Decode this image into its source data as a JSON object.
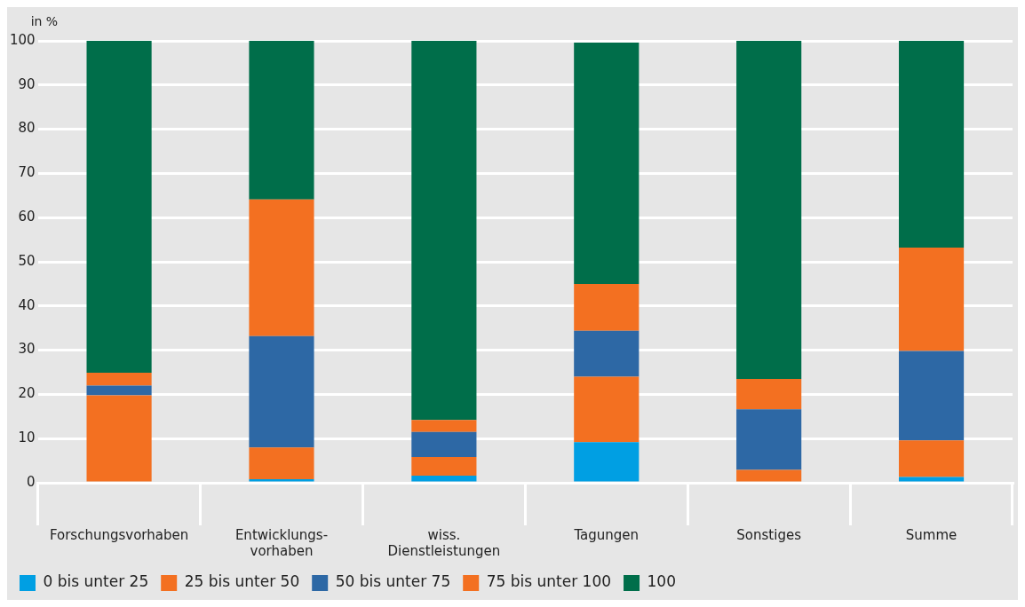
{
  "chart_data": {
    "type": "bar",
    "stacked": true,
    "ylabel": "in %",
    "categories": [
      "Forschungsvorhaben",
      "Entwicklungs-\nvorhaben",
      "wiss.\nDienstleistungen",
      "Tagungen",
      "Sonstiges",
      "Summe"
    ],
    "series": [
      {
        "name": "0 bis unter 25",
        "color": "#009fe3",
        "values": [
          0,
          0.8,
          1.6,
          9.2,
          0,
          1.3
        ]
      },
      {
        "name": "25 bis unter 50",
        "color": "#f37021",
        "values": [
          19.8,
          7.2,
          4.2,
          14.8,
          2.9,
          8.3
        ]
      },
      {
        "name": "50 bis unter 75",
        "color": "#2d68a5",
        "values": [
          2.2,
          25.2,
          5.7,
          10.4,
          13.7,
          20.2
        ]
      },
      {
        "name": "75 bis unter 100",
        "color": "#f37021",
        "values": [
          2.9,
          30.9,
          2.7,
          10.6,
          6.9,
          23.4
        ]
      },
      {
        "name": "100",
        "color": "#006e4a",
        "values": [
          75.1,
          35.9,
          85.8,
          54.6,
          76.5,
          46.8
        ]
      }
    ],
    "ylim": [
      0,
      100
    ],
    "yticks": [
      0,
      10,
      20,
      30,
      40,
      50,
      60,
      70,
      80,
      90,
      100
    ],
    "grid": "y",
    "legend": "bottom left"
  }
}
